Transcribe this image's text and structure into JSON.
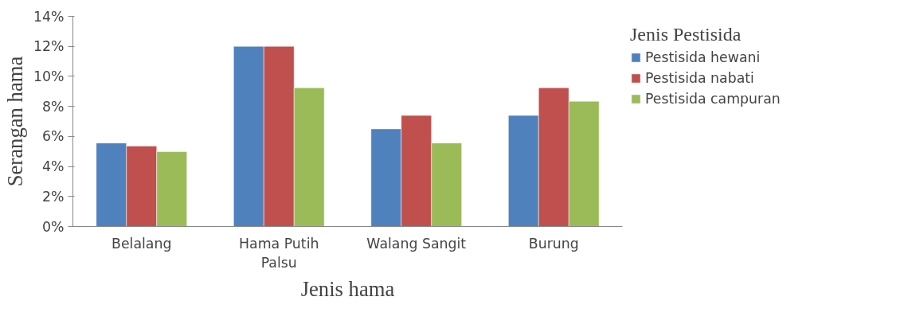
{
  "chart_data": {
    "type": "bar",
    "xlabel": "Jenis hama",
    "ylabel": "Serangan hama",
    "legend_title": "Jenis Pestisida",
    "legend": "right",
    "categories": [
      "Belalang",
      "Hama Putih\nPalsu",
      "Walang Sangit",
      "Burung"
    ],
    "series": [
      {
        "name": "Pestisida hewani",
        "color": "#4f81bd",
        "values": [
          5.56,
          12.0,
          6.5,
          7.4
        ]
      },
      {
        "name": "Pestisida nabati",
        "color": "#c0504d",
        "values": [
          5.36,
          12.0,
          7.4,
          9.24
        ]
      },
      {
        "name": "Pestisida campuran",
        "color": "#9bbb59",
        "values": [
          4.99,
          9.24,
          5.56,
          8.34
        ]
      }
    ],
    "ylim": [
      0,
      14
    ],
    "yticks": [
      {
        "value": 0,
        "label": "0%"
      },
      {
        "value": 2,
        "label": "2%"
      },
      {
        "value": 4,
        "label": "4%"
      },
      {
        "value": 6,
        "label": "6%"
      },
      {
        "value": 8,
        "label": "8%"
      },
      {
        "value": 10,
        "label": "10%"
      },
      {
        "value": 12,
        "label": "12%"
      },
      {
        "value": 14,
        "label": "14%"
      }
    ],
    "grid": false
  }
}
